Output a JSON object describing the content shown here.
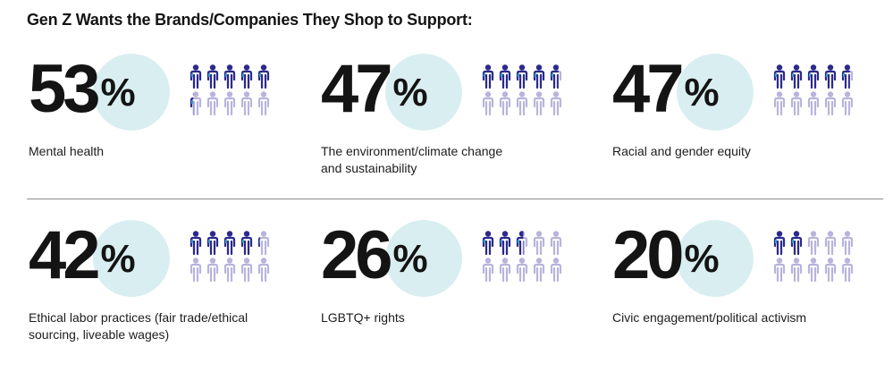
{
  "title": "Gen Z Wants the Brands/Companies They Shop to Support:",
  "colors": {
    "circle": "#d9eef0",
    "person_filled_dark": "#2b2a8c",
    "person_filled_accent": "#3aa0c8",
    "person_empty": "#b8b4dc"
  },
  "stats": [
    {
      "value": "53",
      "suffix": "%",
      "label_lines": [
        "Mental health"
      ],
      "filled_of_ten": 5.3
    },
    {
      "value": "47",
      "suffix": "%",
      "label_lines": [
        "The environment/climate change",
        "and sustainability"
      ],
      "filled_of_ten": 4.7
    },
    {
      "value": "47",
      "suffix": "%",
      "label_lines": [
        "Racial and gender equity"
      ],
      "filled_of_ten": 4.7
    },
    {
      "value": "42",
      "suffix": "%",
      "label_lines": [
        "Ethical labor practices (fair trade/ethical",
        "sourcing, liveable wages)"
      ],
      "filled_of_ten": 4.2
    },
    {
      "value": "26",
      "suffix": "%",
      "label_lines": [
        "LGBTQ+ rights"
      ],
      "filled_of_ten": 2.6
    },
    {
      "value": "20",
      "suffix": "%",
      "label_lines": [
        "Civic engagement/political activism"
      ],
      "filled_of_ten": 2.0
    }
  ]
}
